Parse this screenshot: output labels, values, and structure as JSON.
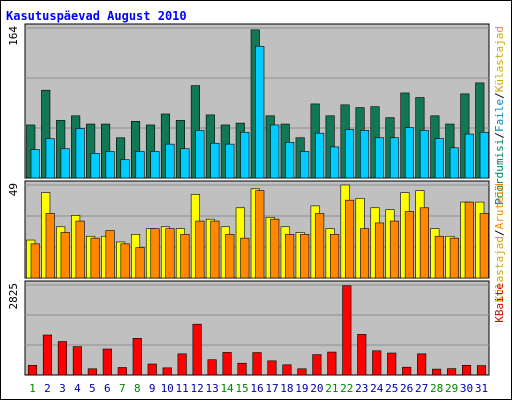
{
  "chart_data": {
    "type": "bar",
    "title": "Kasutuspäevad August 2010",
    "colors": {
      "background": "#ffffff",
      "frame": "#000000",
      "title": "#0000ff",
      "plot_background": "#c0c0c0",
      "gridline": "#8e8e8e",
      "weekday_label": "#0000aa",
      "weekend_label": "#008800"
    },
    "categories": [
      "1",
      "2",
      "3",
      "4",
      "5",
      "6",
      "7",
      "8",
      "9",
      "10",
      "11",
      "12",
      "13",
      "14",
      "15",
      "16",
      "17",
      "18",
      "19",
      "20",
      "21",
      "22",
      "23",
      "24",
      "25",
      "26",
      "27",
      "28",
      "29",
      "30",
      "31"
    ],
    "weekend_days": [
      "1",
      "7",
      "8",
      "14",
      "15",
      "21",
      "22",
      "28",
      "29"
    ],
    "panels": [
      {
        "name": "top",
        "max_label": "164",
        "ylim": [
          0,
          164
        ],
        "axis_label_parts": [
          {
            "text": "Pöördumisi",
            "color": "#008855"
          },
          {
            "text": "/",
            "color": "#000000"
          },
          {
            "text": "Faile",
            "color": "#0088cc"
          },
          {
            "text": "/",
            "color": "#000000"
          },
          {
            "text": "Külastajad",
            "color": "#ccaa00"
          }
        ],
        "series": [
          {
            "name": "Pöördumisi",
            "color": "#117755",
            "values": [
              58,
              96,
              63,
              68,
              59,
              59,
              44,
              62,
              58,
              70,
              63,
              101,
              69,
              58,
              60,
              162,
              68,
              59,
              44,
              81,
              68,
              80,
              77,
              78,
              66,
              93,
              88,
              68,
              59,
              92,
              104
            ]
          },
          {
            "name": "Faile",
            "color": "#00ccff",
            "values": [
              31,
              43,
              32,
              54,
              27,
              29,
              20,
              29,
              29,
              37,
              32,
              52,
              38,
              37,
              50,
              144,
              58,
              39,
              29,
              49,
              34,
              53,
              52,
              44,
              44,
              55,
              52,
              43,
              33,
              48,
              50
            ]
          }
        ]
      },
      {
        "name": "middle",
        "max_label": "49",
        "ylim": [
          0,
          49
        ],
        "axis_label_parts": [
          {
            "text": "Külastajad",
            "color": "#ccaa00"
          },
          {
            "text": "/",
            "color": "#000000"
          },
          {
            "text": "Aruteid",
            "color": "#ff8800"
          }
        ],
        "series": [
          {
            "name": "Külastajad",
            "color": "#ffff00",
            "values": [
              20,
              45,
              27,
              33,
              22,
              22,
              19,
              23,
              26,
              27,
              26,
              44,
              31,
              27,
              37,
              47,
              32,
              27,
              24,
              38,
              26,
              49,
              42,
              37,
              36,
              45,
              46,
              26,
              22,
              40,
              40
            ]
          },
          {
            "name": "Aruteid",
            "color": "#ff8800",
            "values": [
              18,
              34,
              24,
              30,
              21,
              25,
              18,
              16,
              26,
              26,
              23,
              30,
              30,
              23,
              21,
              46,
              31,
              23,
              23,
              34,
              23,
              41,
              26,
              29,
              30,
              35,
              37,
              22,
              21,
              40,
              34
            ]
          }
        ]
      },
      {
        "name": "bottom",
        "max_label": "2825",
        "ylim": [
          0,
          2825
        ],
        "axis_label_parts": [
          {
            "text": "KBaite",
            "color": "#dd0000"
          }
        ],
        "series": [
          {
            "name": "KBaite",
            "color": "#ff0000",
            "values": [
              305,
              1255,
              1050,
              890,
              195,
              815,
              235,
              1150,
              345,
              225,
              665,
              1595,
              480,
              710,
              370,
              705,
              445,
              320,
              195,
              640,
              720,
              2800,
              1275,
              760,
              690,
              245,
              665,
              185,
              200,
              305,
              295
            ]
          }
        ]
      }
    ]
  }
}
